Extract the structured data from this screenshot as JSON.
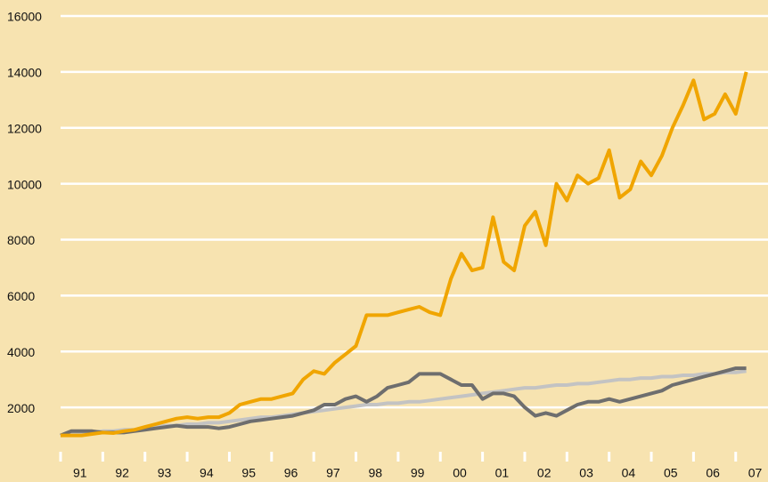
{
  "chart_data": {
    "type": "line",
    "categories": [
      "91",
      null,
      null,
      null,
      "92",
      null,
      null,
      null,
      "93",
      null,
      null,
      null,
      "94",
      null,
      null,
      null,
      "95",
      null,
      null,
      null,
      "96",
      null,
      null,
      null,
      "97",
      null,
      null,
      null,
      "98",
      null,
      null,
      null,
      "99",
      null,
      null,
      null,
      "00",
      null,
      null,
      null,
      "01",
      null,
      null,
      null,
      "02",
      null,
      null,
      null,
      "03",
      null,
      null,
      null,
      "04",
      null,
      null,
      null,
      "05",
      null,
      null,
      null,
      "06",
      null,
      null,
      null,
      "07",
      null
    ],
    "series": [
      {
        "color": "#c3c3c3",
        "values": [
          1000,
          1050,
          1100,
          1100,
          1150,
          1150,
          1200,
          1200,
          1250,
          1300,
          1350,
          1350,
          1400,
          1400,
          1450,
          1450,
          1500,
          1550,
          1600,
          1650,
          1650,
          1700,
          1750,
          1800,
          1850,
          1900,
          1950,
          2000,
          2050,
          2100,
          2100,
          2150,
          2150,
          2200,
          2200,
          2250,
          2300,
          2350,
          2400,
          2450,
          2500,
          2550,
          2600,
          2650,
          2700,
          2700,
          2750,
          2800,
          2800,
          2850,
          2850,
          2900,
          2950,
          3000,
          3000,
          3050,
          3050,
          3100,
          3100,
          3150,
          3150,
          3200,
          3200,
          3250,
          3250,
          3300
        ]
      },
      {
        "color": "#6e6e6e",
        "values": [
          1000,
          1150,
          1150,
          1150,
          1100,
          1100,
          1100,
          1150,
          1200,
          1250,
          1300,
          1350,
          1300,
          1300,
          1300,
          1250,
          1300,
          1400,
          1500,
          1550,
          1600,
          1650,
          1700,
          1800,
          1900,
          2100,
          2100,
          2300,
          2400,
          2200,
          2400,
          2700,
          2800,
          2900,
          3200,
          3200,
          3200,
          3000,
          2800,
          2800,
          2300,
          2500,
          2500,
          2400,
          2000,
          1700,
          1800,
          1700,
          1900,
          2100,
          2200,
          2200,
          2300,
          2200,
          2300,
          2400,
          2500,
          2600,
          2800,
          2900,
          3000,
          3100,
          3200,
          3300,
          3400,
          3400
        ]
      },
      {
        "color": "#f0a500",
        "values": [
          1000,
          1000,
          1000,
          1050,
          1100,
          1080,
          1150,
          1200,
          1300,
          1400,
          1500,
          1600,
          1650,
          1600,
          1650,
          1650,
          1800,
          2100,
          2200,
          2300,
          2300,
          2400,
          2500,
          3000,
          3300,
          3200,
          3600,
          3900,
          4200,
          5300,
          5300,
          5300,
          5400,
          5500,
          5600,
          5400,
          5300,
          6600,
          7500,
          6900,
          7000,
          8800,
          7200,
          6900,
          8500,
          9000,
          7800,
          10000,
          9400,
          10300,
          10000,
          10200,
          11200,
          9500,
          9800,
          10800,
          10300,
          11000,
          12000,
          12800,
          13700,
          12300,
          12500,
          13200,
          12500,
          14000
        ]
      }
    ],
    "ylim": [
      0,
      16000
    ],
    "yticks": [
      2000,
      4000,
      6000,
      8000,
      10000,
      12000,
      14000,
      16000
    ],
    "grid": true
  }
}
